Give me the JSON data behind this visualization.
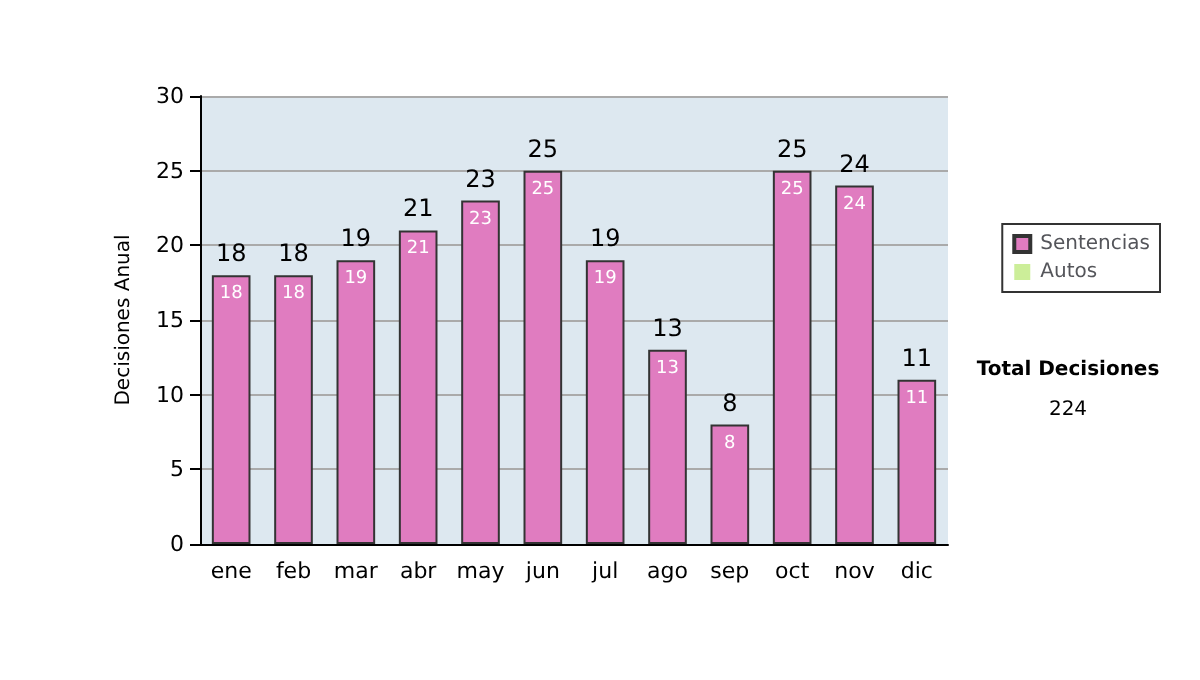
{
  "chart_data": {
    "type": "bar",
    "stacked": true,
    "ylabel": "Decisiones Anual",
    "categories": [
      "ene",
      "feb",
      "mar",
      "abr",
      "may",
      "jun",
      "jul",
      "ago",
      "sep",
      "oct",
      "nov",
      "dic"
    ],
    "series": [
      {
        "name": "Sentencias",
        "color": "#e07cc0",
        "values": [
          18,
          18,
          19,
          21,
          23,
          25,
          19,
          13,
          8,
          25,
          24,
          11
        ],
        "value_labels": [
          "18",
          "18",
          "19",
          "21",
          "23",
          "25",
          "19",
          "13",
          "8",
          "25",
          "24",
          "11"
        ]
      },
      {
        "name": "Autos",
        "color": "#ccee99",
        "values": [
          0,
          0,
          0,
          0,
          0,
          0,
          0,
          0,
          0,
          0,
          0,
          0
        ]
      }
    ],
    "totals": [
      "18",
      "18",
      "19",
      "21",
      "23",
      "25",
      "19",
      "13",
      "8",
      "25",
      "24",
      "11"
    ],
    "ylim": [
      0,
      30
    ],
    "yticks": [
      0,
      5,
      10,
      15,
      20,
      25,
      30
    ],
    "grid": "y",
    "legend": "right",
    "annotations": [
      "Total Decisiones",
      "224"
    ]
  }
}
